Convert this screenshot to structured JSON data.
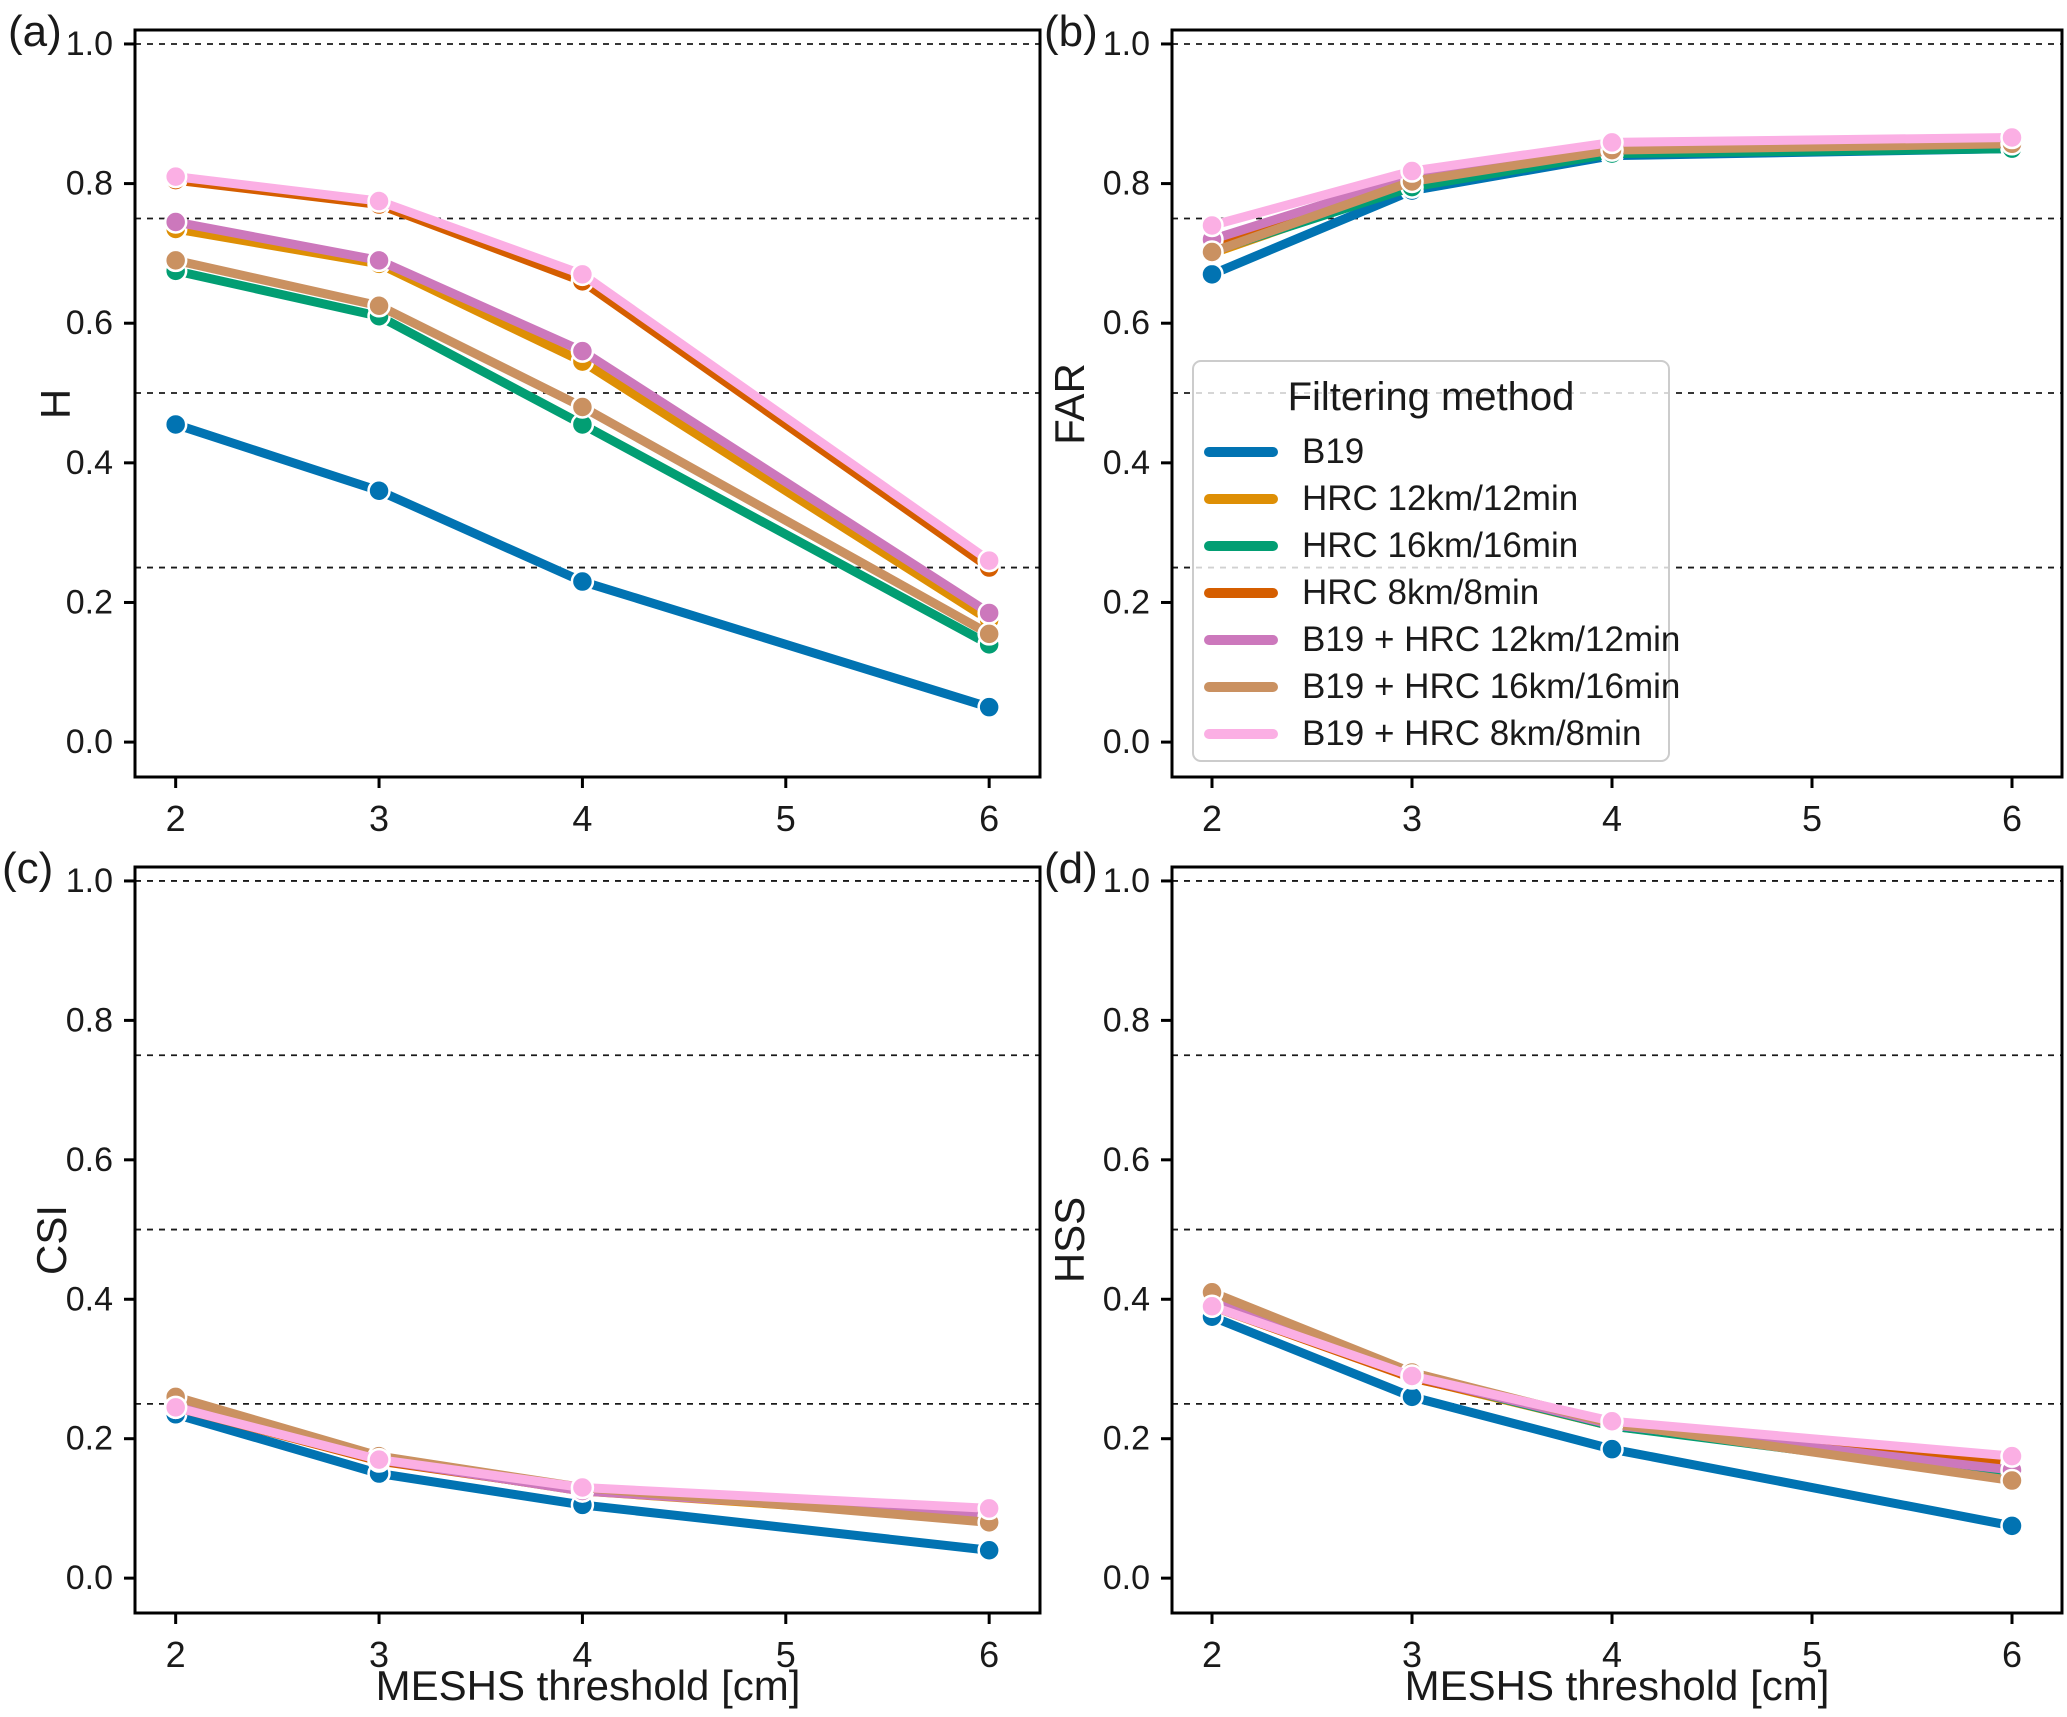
{
  "figure_colors": {
    "background": "#ffffff",
    "text": "#1a1a1a",
    "spine": "#000000",
    "gridline": "#1a1a1a"
  },
  "legend": {
    "title": "Filtering method",
    "items": [
      {
        "label": "B19",
        "color": "#0173b2"
      },
      {
        "label": "HRC 12km/12min",
        "color": "#de8f05"
      },
      {
        "label": "HRC 16km/16min",
        "color": "#029e73"
      },
      {
        "label": "HRC 8km/8min",
        "color": "#d55e00"
      },
      {
        "label": "B19 + HRC 12km/12min",
        "color": "#cc78bc"
      },
      {
        "label": "B19 + HRC 16km/16min",
        "color": "#ca9161"
      },
      {
        "label": "B19 + HRC 8km/8min",
        "color": "#fbafe4"
      }
    ]
  },
  "chart_data": [
    {
      "type": "line",
      "panel_label": "(a)",
      "ylabel": "H",
      "xlabel": "",
      "x": [
        2,
        3,
        4,
        6
      ],
      "xticks": [
        "2",
        "3",
        "4",
        "5",
        "6"
      ],
      "xtick_values": [
        2,
        3,
        4,
        5,
        6
      ],
      "yticks": [
        "0.0",
        "0.2",
        "0.4",
        "0.6",
        "0.8",
        "1.0"
      ],
      "ytick_values": [
        0.0,
        0.2,
        0.4,
        0.6,
        0.8,
        1.0
      ],
      "ref_lines": [
        0.25,
        0.5,
        0.75,
        1.0
      ],
      "xlim": [
        1.8,
        6.25
      ],
      "ylim": [
        -0.05,
        1.02
      ],
      "grid": "horizontal dashed reference lines",
      "series": [
        {
          "name": "B19",
          "color": "#0173b2",
          "values": [
            0.455,
            0.36,
            0.23,
            0.05
          ]
        },
        {
          "name": "HRC 12km/12min",
          "color": "#de8f05",
          "values": [
            0.735,
            0.685,
            0.545,
            0.175
          ]
        },
        {
          "name": "HRC 16km/16min",
          "color": "#029e73",
          "values": [
            0.675,
            0.61,
            0.455,
            0.14
          ]
        },
        {
          "name": "HRC 8km/8min",
          "color": "#d55e00",
          "values": [
            0.805,
            0.77,
            0.66,
            0.25
          ]
        },
        {
          "name": "B19 + HRC 12km/12min",
          "color": "#cc78bc",
          "values": [
            0.745,
            0.69,
            0.56,
            0.185
          ]
        },
        {
          "name": "B19 + HRC 16km/16min",
          "color": "#ca9161",
          "values": [
            0.69,
            0.625,
            0.48,
            0.155
          ]
        },
        {
          "name": "B19 + HRC 8km/8min",
          "color": "#fbafe4",
          "values": [
            0.81,
            0.775,
            0.67,
            0.26
          ]
        }
      ]
    },
    {
      "type": "line",
      "panel_label": "(b)",
      "ylabel": "FAR",
      "xlabel": "",
      "x": [
        2,
        3,
        4,
        6
      ],
      "xticks": [
        "2",
        "3",
        "4",
        "5",
        "6"
      ],
      "xtick_values": [
        2,
        3,
        4,
        5,
        6
      ],
      "yticks": [
        "0.0",
        "0.2",
        "0.4",
        "0.6",
        "0.8",
        "1.0"
      ],
      "ytick_values": [
        0.0,
        0.2,
        0.4,
        0.6,
        0.8,
        1.0
      ],
      "ref_lines": [
        0.25,
        0.5,
        0.75,
        1.0
      ],
      "xlim": [
        1.8,
        6.25
      ],
      "ylim": [
        -0.05,
        1.02
      ],
      "grid": "horizontal dashed reference lines",
      "legend_position": "center left",
      "series": [
        {
          "name": "B19",
          "color": "#0173b2",
          "values": [
            0.67,
            0.79,
            0.84,
            0.85
          ]
        },
        {
          "name": "HRC 12km/12min",
          "color": "#de8f05",
          "values": [
            0.7,
            0.8,
            0.845,
            0.852
          ]
        },
        {
          "name": "HRC 16km/16min",
          "color": "#029e73",
          "values": [
            0.703,
            0.795,
            0.843,
            0.85
          ]
        },
        {
          "name": "HRC 8km/8min",
          "color": "#d55e00",
          "values": [
            0.71,
            0.808,
            0.854,
            0.861
          ]
        },
        {
          "name": "B19 + HRC 12km/12min",
          "color": "#cc78bc",
          "values": [
            0.72,
            0.81,
            0.853,
            0.86
          ]
        },
        {
          "name": "B19 + HRC 16km/16min",
          "color": "#ca9161",
          "values": [
            0.702,
            0.803,
            0.848,
            0.857
          ]
        },
        {
          "name": "B19 + HRC 8km/8min",
          "color": "#fbafe4",
          "values": [
            0.74,
            0.818,
            0.859,
            0.866
          ]
        }
      ]
    },
    {
      "type": "line",
      "panel_label": "(c)",
      "ylabel": "CSI",
      "xlabel": "MESHS threshold [cm]",
      "x": [
        2,
        3,
        4,
        6
      ],
      "xticks": [
        "2",
        "3",
        "4",
        "5",
        "6"
      ],
      "xtick_values": [
        2,
        3,
        4,
        5,
        6
      ],
      "yticks": [
        "0.0",
        "0.2",
        "0.4",
        "0.6",
        "0.8",
        "1.0"
      ],
      "ytick_values": [
        0.0,
        0.2,
        0.4,
        0.6,
        0.8,
        1.0
      ],
      "ref_lines": [
        0.25,
        0.5,
        0.75,
        1.0
      ],
      "xlim": [
        1.8,
        6.25
      ],
      "ylim": [
        -0.05,
        1.02
      ],
      "grid": "horizontal dashed reference lines",
      "series": [
        {
          "name": "B19",
          "color": "#0173b2",
          "values": [
            0.235,
            0.15,
            0.105,
            0.04
          ]
        },
        {
          "name": "HRC 12km/12min",
          "color": "#de8f05",
          "values": [
            0.25,
            0.17,
            0.125,
            0.085
          ]
        },
        {
          "name": "HRC 16km/16min",
          "color": "#029e73",
          "values": [
            0.255,
            0.172,
            0.127,
            0.09
          ]
        },
        {
          "name": "HRC 8km/8min",
          "color": "#d55e00",
          "values": [
            0.245,
            0.168,
            0.126,
            0.093
          ]
        },
        {
          "name": "B19 + HRC 12km/12min",
          "color": "#cc78bc",
          "values": [
            0.25,
            0.17,
            0.125,
            0.088
          ]
        },
        {
          "name": "B19 + HRC 16km/16min",
          "color": "#ca9161",
          "values": [
            0.26,
            0.175,
            0.13,
            0.08
          ]
        },
        {
          "name": "B19 + HRC 8km/8min",
          "color": "#fbafe4",
          "values": [
            0.245,
            0.17,
            0.13,
            0.1
          ]
        }
      ]
    },
    {
      "type": "line",
      "panel_label": "(d)",
      "ylabel": "HSS",
      "xlabel": "MESHS threshold [cm]",
      "x": [
        2,
        3,
        4,
        6
      ],
      "xticks": [
        "2",
        "3",
        "4",
        "5",
        "6"
      ],
      "xtick_values": [
        2,
        3,
        4,
        5,
        6
      ],
      "yticks": [
        "0.0",
        "0.2",
        "0.4",
        "0.6",
        "0.8",
        "1.0"
      ],
      "ytick_values": [
        0.0,
        0.2,
        0.4,
        0.6,
        0.8,
        1.0
      ],
      "ref_lines": [
        0.25,
        0.5,
        0.75,
        1.0
      ],
      "xlim": [
        1.8,
        6.25
      ],
      "ylim": [
        -0.05,
        1.02
      ],
      "grid": "horizontal dashed reference lines",
      "series": [
        {
          "name": "B19",
          "color": "#0173b2",
          "values": [
            0.375,
            0.26,
            0.185,
            0.075
          ]
        },
        {
          "name": "HRC 12km/12min",
          "color": "#de8f05",
          "values": [
            0.395,
            0.288,
            0.218,
            0.15
          ]
        },
        {
          "name": "HRC 16km/16min",
          "color": "#029e73",
          "values": [
            0.4,
            0.29,
            0.218,
            0.145
          ]
        },
        {
          "name": "HRC 8km/8min",
          "color": "#d55e00",
          "values": [
            0.39,
            0.287,
            0.224,
            0.165
          ]
        },
        {
          "name": "B19 + HRC 12km/12min",
          "color": "#cc78bc",
          "values": [
            0.4,
            0.29,
            0.22,
            0.155
          ]
        },
        {
          "name": "B19 + HRC 16km/16min",
          "color": "#ca9161",
          "values": [
            0.41,
            0.295,
            0.222,
            0.14
          ]
        },
        {
          "name": "B19 + HRC 8km/8min",
          "color": "#fbafe4",
          "values": [
            0.39,
            0.29,
            0.225,
            0.175
          ]
        }
      ]
    }
  ]
}
